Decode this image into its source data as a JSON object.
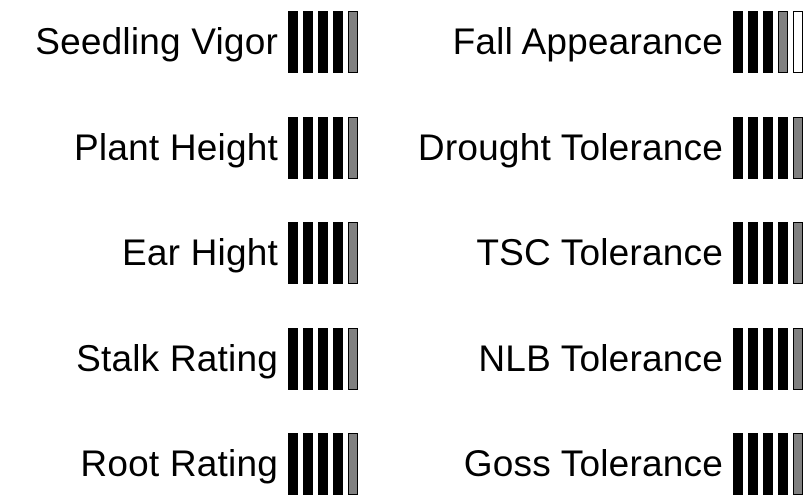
{
  "ratings": {
    "left": [
      {
        "label": "Seedling Vigor",
        "score": 4.5
      },
      {
        "label": "Plant Height",
        "score": 4.5
      },
      {
        "label": "Ear Hight",
        "score": 4.5
      },
      {
        "label": "Stalk Rating",
        "score": 4.5
      },
      {
        "label": "Root Rating",
        "score": 4.5
      }
    ],
    "right": [
      {
        "label": "Fall Appearance",
        "score": 3.5
      },
      {
        "label": "Drought Tolerance",
        "score": 4.5
      },
      {
        "label": "TSC Tolerance",
        "score": 4.5
      },
      {
        "label": "NLB Tolerance",
        "score": 4.5
      },
      {
        "label": "Goss Tolerance",
        "score": 4.5
      }
    ],
    "max_score": 5
  },
  "colors": {
    "full_bar": "#000000",
    "half_bar": "#808080",
    "text": "#000000",
    "background": "#ffffff"
  }
}
